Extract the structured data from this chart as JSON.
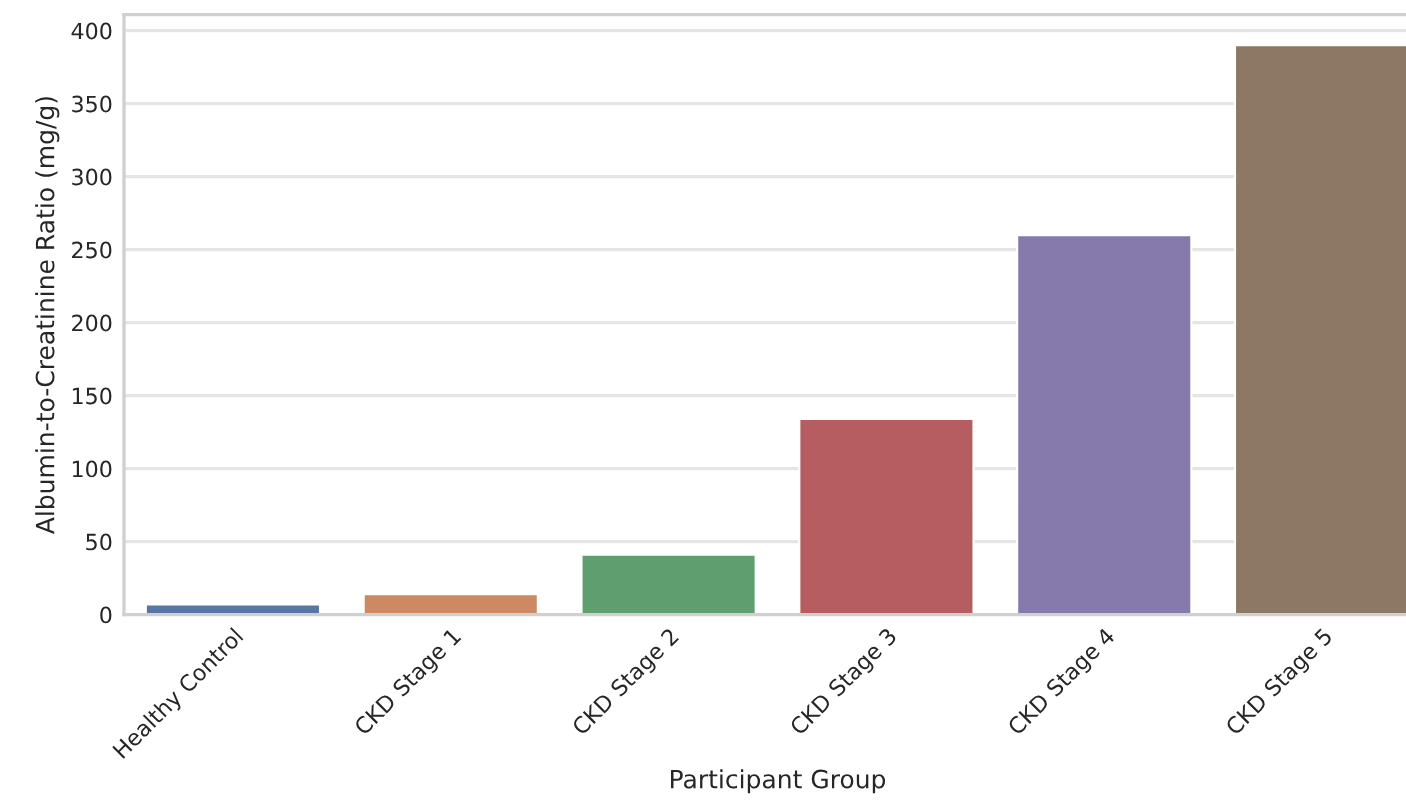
{
  "chart_data": {
    "type": "bar",
    "xlabel": "Participant Group",
    "ylabel": "Albumin-to-Creatinine Ratio (mg/g)",
    "categories": [
      "Healthy Control",
      "CKD Stage 1",
      "CKD Stage 2",
      "CKD Stage 3",
      "CKD Stage 4",
      "CKD Stage 5"
    ],
    "values": [
      7,
      14,
      41,
      134,
      260,
      390
    ],
    "colors": [
      "#5975a4",
      "#cc8963",
      "#5f9e6e",
      "#b55d60",
      "#857aab",
      "#8d7866"
    ],
    "ylim": [
      0,
      411
    ],
    "yticks": [
      0,
      50,
      100,
      150,
      200,
      250,
      300,
      350,
      400
    ],
    "grid": "y",
    "legend": false
  }
}
